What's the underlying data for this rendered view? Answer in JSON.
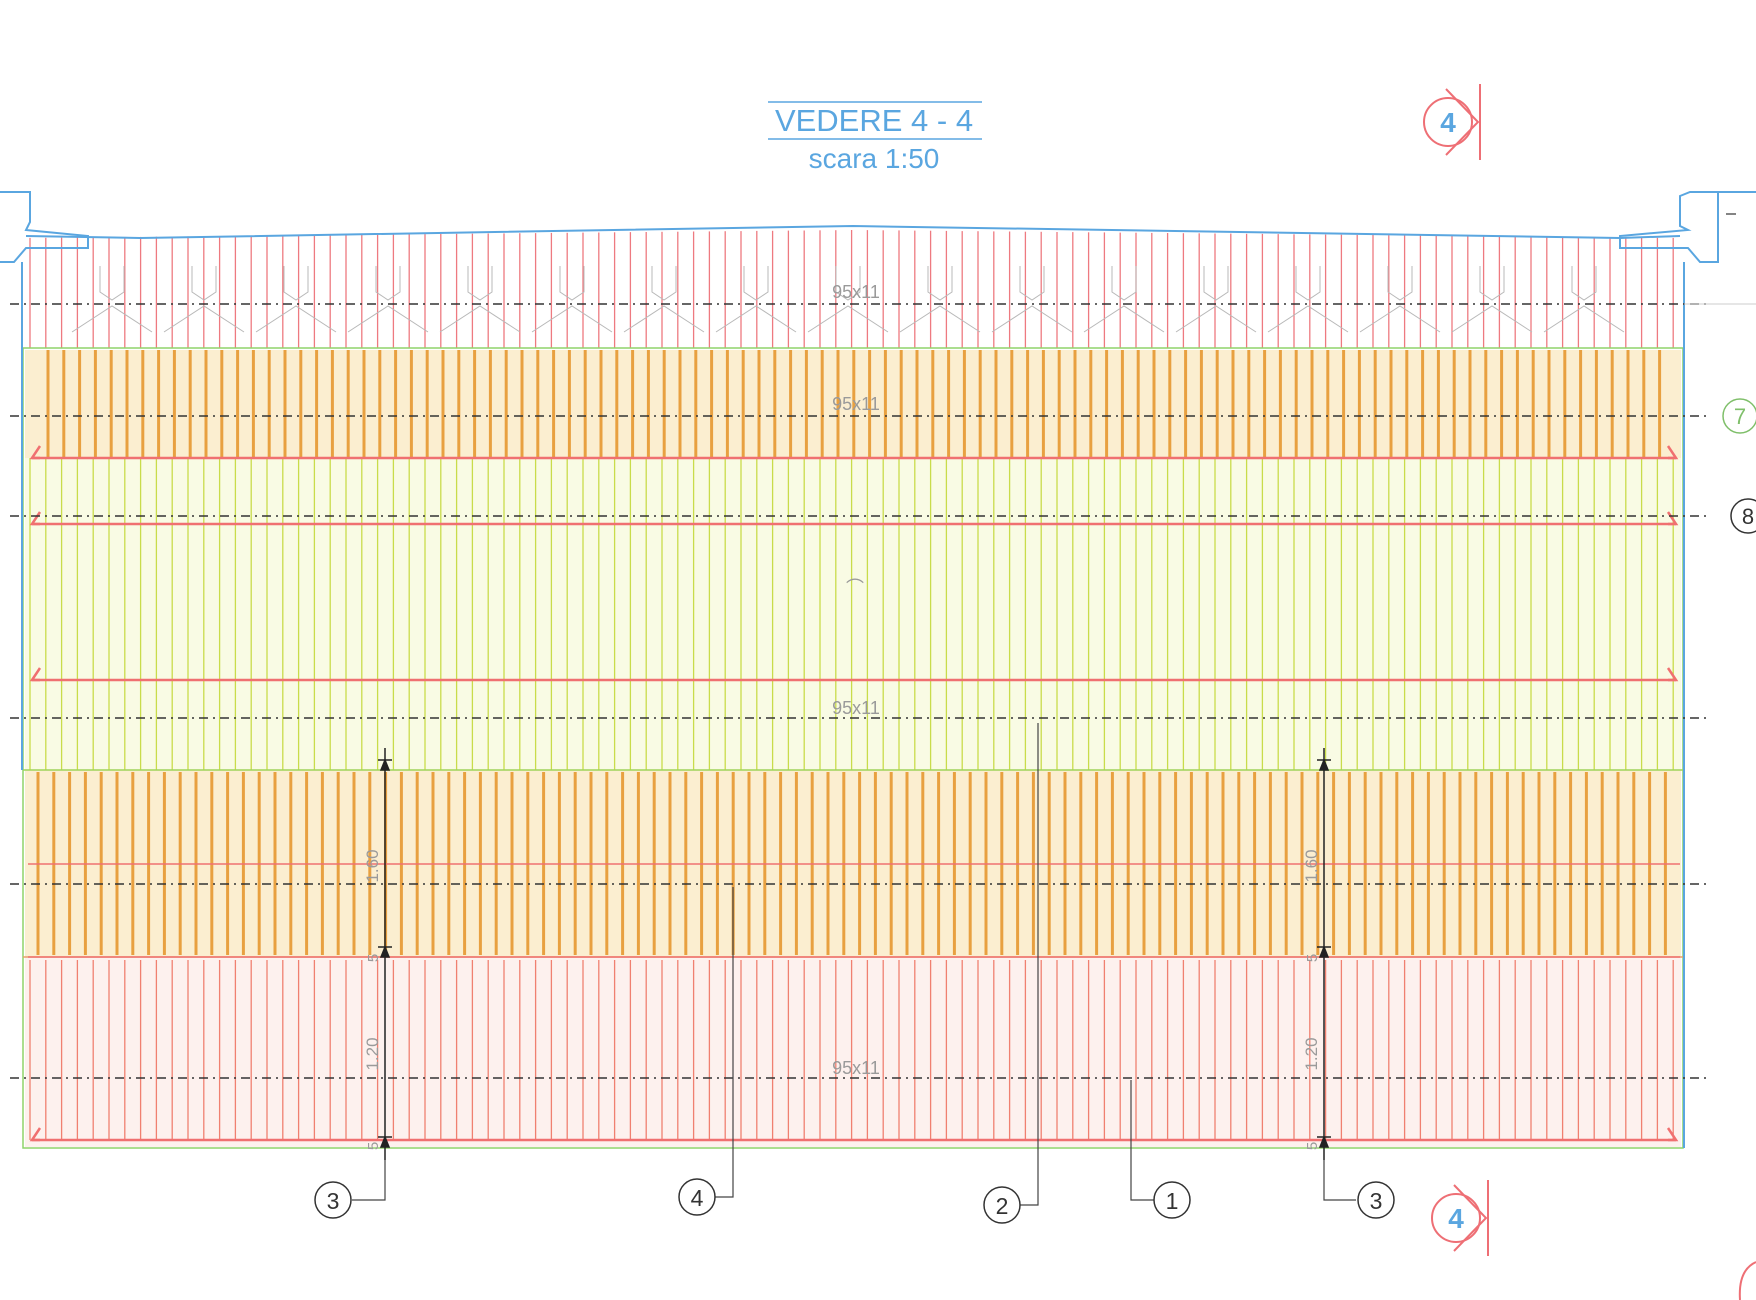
{
  "title": {
    "main": "VEDERE 4 - 4",
    "scale": "scara 1:50"
  },
  "section_markers": [
    {
      "label": "4",
      "position": "top-right"
    },
    {
      "label": "4",
      "position": "bottom-right"
    }
  ],
  "band_labels": [
    "95x11",
    "95x11",
    "95x11",
    "95x11"
  ],
  "dimensions_left": [
    "1.60",
    "5",
    "1.20",
    "5"
  ],
  "dimensions_right": [
    "1.60",
    "5",
    "1.20",
    "5"
  ],
  "bottom_callouts": [
    "3",
    "4",
    "2",
    "1",
    "3"
  ],
  "right_callouts": [
    "7",
    "8"
  ],
  "colors": {
    "outline": "#5aa6e0",
    "upper_bars": "#ee7a80",
    "mesh_orange": "#e8a040",
    "mesh_yellow": "#c9dc4a",
    "bottom_bars": "#f08070",
    "stirrups": "#f07070",
    "axis_lines": "#333333",
    "green_outline": "#8fd36a"
  }
}
